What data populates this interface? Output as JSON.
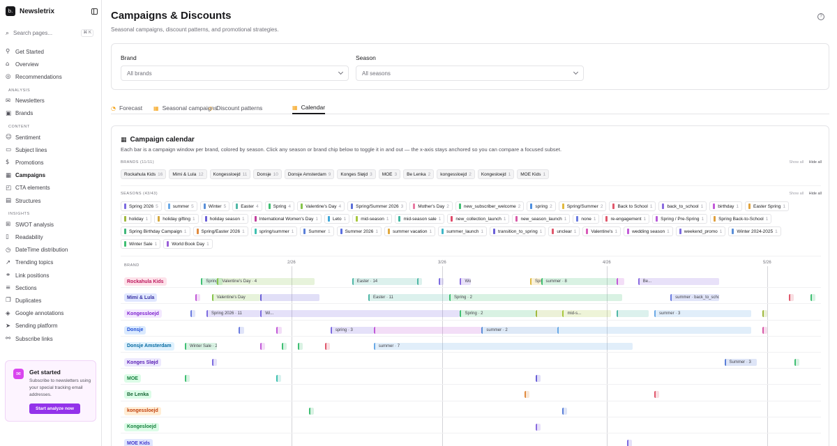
{
  "app": {
    "name": "Newsletrix",
    "logo_text": "b."
  },
  "sidebar": {
    "search_placeholder": "Search pages...",
    "search_shortcut": "⌘ K",
    "top_items": [
      {
        "label": "Get Started",
        "icon": "rocket-icon",
        "glyph": "⚲"
      },
      {
        "label": "Overview",
        "icon": "home-icon",
        "glyph": "⌂"
      },
      {
        "label": "Recommendations",
        "icon": "lightbulb-icon",
        "glyph": "◎"
      }
    ],
    "sections": [
      {
        "heading": "ANALYSIS",
        "items": [
          {
            "label": "Newsletters",
            "icon": "mail-icon",
            "glyph": "✉"
          },
          {
            "label": "Brands",
            "icon": "store-icon",
            "glyph": "▣"
          }
        ]
      },
      {
        "heading": "CONTENT",
        "items": [
          {
            "label": "Sentiment",
            "icon": "smile-icon",
            "glyph": "☺"
          },
          {
            "label": "Subject lines",
            "icon": "message-icon",
            "glyph": "▭"
          },
          {
            "label": "Promotions",
            "icon": "dollar-icon",
            "glyph": "$"
          },
          {
            "label": "Campaigns",
            "icon": "calendar-icon",
            "glyph": "▦",
            "active": true
          },
          {
            "label": "CTA elements",
            "icon": "cursor-icon",
            "glyph": "◰"
          },
          {
            "label": "Structures",
            "icon": "layout-icon",
            "glyph": "▤"
          }
        ]
      },
      {
        "heading": "INSIGHTS",
        "items": [
          {
            "label": "SWOT analysis",
            "icon": "swot-icon",
            "glyph": "⊞"
          },
          {
            "label": "Readability",
            "icon": "book-icon",
            "glyph": "▯"
          },
          {
            "label": "DateTime distribution",
            "icon": "clock-icon",
            "glyph": "◷"
          },
          {
            "label": "Trending topics",
            "icon": "trend-icon",
            "glyph": "↗"
          },
          {
            "label": "Link positions",
            "icon": "link-icon",
            "glyph": "⚭"
          },
          {
            "label": "Sections",
            "icon": "sections-icon",
            "glyph": "≡"
          },
          {
            "label": "Duplicates",
            "icon": "copy-icon",
            "glyph": "❐"
          },
          {
            "label": "Google annotations",
            "icon": "tag-icon",
            "glyph": "◈"
          },
          {
            "label": "Sending platform",
            "icon": "send-icon",
            "glyph": "➤"
          },
          {
            "label": "Subscribe links",
            "icon": "link-plus-icon",
            "glyph": "⚯"
          }
        ]
      }
    ],
    "promo": {
      "title": "Get started",
      "body": "Subscribe to newsletters using your special tracking email addresses.",
      "button": "Start analyze now"
    }
  },
  "header": {
    "title": "Campaigns & Discounts",
    "subtitle": "Seasonal campaigns, discount patterns, and promotional strategies."
  },
  "filters": {
    "brand_label": "Brand",
    "brand_value": "All brands",
    "season_label": "Season",
    "season_value": "All seasons"
  },
  "tabs": [
    {
      "label": "Forecast",
      "icon": "forecast-icon",
      "glyph": "◔"
    },
    {
      "label": "Seasonal campaigns",
      "icon": "calendar-icon",
      "glyph": "▦"
    },
    {
      "label": "Discount patterns",
      "icon": "tag-icon",
      "glyph": "◇"
    },
    {
      "label": "Calendar",
      "icon": "calendar-icon",
      "glyph": "▦",
      "active": true
    }
  ],
  "calendar": {
    "title": "Campaign calendar",
    "subtitle": "Each bar is a campaign window per brand, colored by season. Click any season or brand chip below to toggle it in and out — the x-axis stays anchored so you can compare a focused subset.",
    "brands_label": "BRANDS (11/11)",
    "seasons_label": "SEASONS (43/43)",
    "show_all": "Show all",
    "hide_all": "Hide all",
    "brand_column_label": "BRAND",
    "brand_chips": [
      {
        "name": "Rockahula Kids",
        "count": "16"
      },
      {
        "name": "Mimi & Lula",
        "count": "12"
      },
      {
        "name": "Kongessloejd",
        "count": "11"
      },
      {
        "name": "Donsje",
        "count": "10"
      },
      {
        "name": "Donsje Amsterdam",
        "count": "9"
      },
      {
        "name": "Konges Sløjd",
        "count": "3"
      },
      {
        "name": "MOE",
        "count": "3"
      },
      {
        "name": "Be Lenka",
        "count": "2"
      },
      {
        "name": "kongessloejd",
        "count": "2"
      },
      {
        "name": "Kongesloejd",
        "count": "1"
      },
      {
        "name": "MOE Kids",
        "count": "1"
      }
    ],
    "season_chips": [
      {
        "name": "Spring 2026",
        "count": "5",
        "color": "#7c6be0"
      },
      {
        "name": "summer",
        "count": "5",
        "color": "#6aa9e6"
      },
      {
        "name": "Winter",
        "count": "5",
        "color": "#5a8fd8"
      },
      {
        "name": "Easter",
        "count": "4",
        "color": "#4fb7a6"
      },
      {
        "name": "Spring",
        "count": "4",
        "color": "#3fbf73"
      },
      {
        "name": "Valentine's Day",
        "count": "4",
        "color": "#86c44a"
      },
      {
        "name": "Spring/Summer 2026",
        "count": "3",
        "color": "#5b6fd8"
      },
      {
        "name": "Mother's Day",
        "count": "2",
        "color": "#e87aa3"
      },
      {
        "name": "new_subscriber_welcome",
        "count": "2",
        "color": "#3fbf73"
      },
      {
        "name": "spring",
        "count": "2",
        "color": "#4d8fe0"
      },
      {
        "name": "Spring/Summer",
        "count": "2",
        "color": "#e0b93e"
      },
      {
        "name": "Back to School",
        "count": "1",
        "color": "#e0586c"
      },
      {
        "name": "back_to_school",
        "count": "1",
        "color": "#8a6be0"
      },
      {
        "name": "birthday",
        "count": "1",
        "color": "#c25ad8"
      },
      {
        "name": "Easter Spring",
        "count": "1",
        "color": "#e0a33e"
      },
      {
        "name": "holiday",
        "count": "1",
        "color": "#a0b83e"
      },
      {
        "name": "holiday gifting",
        "count": "1",
        "color": "#d4a83e"
      },
      {
        "name": "holiday season",
        "count": "1",
        "color": "#6b5fd8"
      },
      {
        "name": "International Women's Day",
        "count": "1",
        "color": "#c2409e"
      },
      {
        "name": "Leto",
        "count": "1",
        "color": "#3fa7d8"
      },
      {
        "name": "mid-season",
        "count": "1",
        "color": "#a8c83e"
      },
      {
        "name": "mid-season sale",
        "count": "1",
        "color": "#3fb7a0"
      },
      {
        "name": "new_collection_launch",
        "count": "1",
        "color": "#e04a6a"
      },
      {
        "name": "new_season_launch",
        "count": "1",
        "color": "#d85aa8"
      },
      {
        "name": "none",
        "count": "1",
        "color": "#6a7be0"
      },
      {
        "name": "re-engagement",
        "count": "1",
        "color": "#e0586c"
      },
      {
        "name": "Spring / Pre-Spring",
        "count": "1",
        "color": "#b85ad8"
      },
      {
        "name": "Spring Back-to-School",
        "count": "1",
        "color": "#e0a03e"
      },
      {
        "name": "Spring Birthday Campaign",
        "count": "1",
        "color": "#3fb77a"
      },
      {
        "name": "Spring/Easter 2026",
        "count": "1",
        "color": "#e08a3e"
      },
      {
        "name": "spring/summer",
        "count": "1",
        "color": "#3fc0b0"
      },
      {
        "name": "Summer",
        "count": "1",
        "color": "#5a7fd8"
      },
      {
        "name": "Summer 2026",
        "count": "1",
        "color": "#5b6fe0"
      },
      {
        "name": "summer vacation",
        "count": "1",
        "color": "#e0a83e"
      },
      {
        "name": "summer_launch",
        "count": "1",
        "color": "#3fb7c8"
      },
      {
        "name": "transition_to_spring",
        "count": "1",
        "color": "#6a5fd8"
      },
      {
        "name": "unclear",
        "count": "1",
        "color": "#e0586c"
      },
      {
        "name": "Valentine's",
        "count": "1",
        "color": "#d85ab8"
      },
      {
        "name": "wedding season",
        "count": "1",
        "color": "#c25ad8"
      },
      {
        "name": "weekend_promo",
        "count": "1",
        "color": "#7c6be0"
      },
      {
        "name": "Winter 2024-2025",
        "count": "1",
        "color": "#5a8fd8"
      },
      {
        "name": "Winter Sale",
        "count": "1",
        "color": "#3fbf73"
      },
      {
        "name": "World Book Day",
        "count": "1",
        "color": "#9a5fd8"
      }
    ],
    "x_ticks": [
      "2/26",
      "3/26",
      "4/26",
      "5/26"
    ],
    "rows": [
      {
        "brand": "Rockahula Kids",
        "badge_bg": "#fde2ea",
        "badge_fg": "#be185d",
        "bars": [
          {
            "s": 0.03,
            "e": 0.07,
            "color": "#3fbf73",
            "label": "Spring"
          },
          {
            "s": 0.06,
            "e": 0.24,
            "color": "#86c44a",
            "label": "Valentine's Day · 4"
          },
          {
            "s": 0.31,
            "e": 0.43,
            "color": "#4fb7a6",
            "label": "Easter · 14"
          },
          {
            "s": 0.43,
            "e": 0.44,
            "color": "#4fb7a6",
            "label": ""
          },
          {
            "s": 0.47,
            "e": 0.475,
            "color": "#7c6be0",
            "label": ""
          },
          {
            "s": 0.51,
            "e": 0.53,
            "color": "#8a6be0",
            "label": "Wo..."
          },
          {
            "s": 0.64,
            "e": 0.66,
            "color": "#e0b93e",
            "label": "Spring..."
          },
          {
            "s": 0.66,
            "e": 0.8,
            "color": "#3fbf73",
            "label": "summer · 8"
          },
          {
            "s": 0.8,
            "e": 0.815,
            "color": "#c25ad8",
            "label": ""
          },
          {
            "s": 0.84,
            "e": 0.99,
            "color": "#8a6be0",
            "label": "Be..."
          }
        ]
      },
      {
        "brand": "Mimi & Lula",
        "badge_bg": "#e0e7ff",
        "badge_fg": "#3730a3",
        "bars": [
          {
            "s": 0.02,
            "e": 0.025,
            "color": "#c25ad8",
            "label": ""
          },
          {
            "s": 0.05,
            "e": 0.14,
            "color": "#86c44a",
            "label": "Valentine's Day"
          },
          {
            "s": 0.14,
            "e": 0.25,
            "color": "#6a5fd8",
            "label": ""
          },
          {
            "s": 0.34,
            "e": 0.49,
            "color": "#4fb7a6",
            "label": "Easter · 11"
          },
          {
            "s": 0.49,
            "e": 0.81,
            "color": "#3fbf73",
            "label": "Spring · 2"
          },
          {
            "s": 0.9,
            "e": 0.99,
            "color": "#6a7be0",
            "label": "summer · back_to_scho..."
          },
          {
            "s": 1.12,
            "e": 1.125,
            "color": "#e0586c",
            "label": ""
          },
          {
            "s": 1.16,
            "e": 1.165,
            "color": "#3fbf73",
            "label": ""
          }
        ]
      },
      {
        "brand": "Kongessloejd",
        "badge_bg": "#f3e8ff",
        "badge_fg": "#7e22ce",
        "bars": [
          {
            "s": 0.01,
            "e": 0.02,
            "color": "#6a7be0",
            "label": ""
          },
          {
            "s": 0.04,
            "e": 0.14,
            "color": "#7c6be0",
            "label": "Spring 2026 · 11"
          },
          {
            "s": 0.14,
            "e": 0.51,
            "color": "#7c6be0",
            "label": "Wi..."
          },
          {
            "s": 0.51,
            "e": 0.65,
            "color": "#3fbf73",
            "label": "Spring · 2"
          },
          {
            "s": 0.65,
            "e": 0.7,
            "color": "#a0b83e",
            "label": ""
          },
          {
            "s": 0.7,
            "e": 0.79,
            "color": "#a8c83e",
            "label": "mid-s..."
          },
          {
            "s": 0.8,
            "e": 0.86,
            "color": "#4fb7a6",
            "label": ""
          },
          {
            "s": 0.87,
            "e": 1.05,
            "color": "#6aa9e6",
            "label": "summer · 3"
          },
          {
            "s": 1.07,
            "e": 1.075,
            "color": "#a0b83e",
            "label": ""
          }
        ]
      },
      {
        "brand": "Donsje",
        "badge_bg": "#dbeafe",
        "badge_fg": "#1d4ed8",
        "bars": [
          {
            "s": 0.1,
            "e": 0.11,
            "color": "#6a7be0",
            "label": ""
          },
          {
            "s": 0.17,
            "e": 0.18,
            "color": "#c25ad8",
            "label": ""
          },
          {
            "s": 0.27,
            "e": 0.35,
            "color": "#7c6be0",
            "label": "spring · 3"
          },
          {
            "s": 0.35,
            "e": 0.55,
            "color": "#c25ad8",
            "label": ""
          },
          {
            "s": 0.55,
            "e": 0.69,
            "color": "#5a8fd8",
            "label": "summer · 2"
          },
          {
            "s": 0.69,
            "e": 1.05,
            "color": "#6aa9e6",
            "label": ""
          },
          {
            "s": 1.07,
            "e": 1.075,
            "color": "#d85aa8",
            "label": ""
          }
        ]
      },
      {
        "brand": "Donsje Amsterdam",
        "badge_bg": "#e0f2fe",
        "badge_fg": "#0369a1",
        "bars": [
          {
            "s": 0.0,
            "e": 0.06,
            "color": "#3fbf73",
            "label": "Winter Sale · 2"
          },
          {
            "s": 0.14,
            "e": 0.145,
            "color": "#c25ad8",
            "label": ""
          },
          {
            "s": 0.18,
            "e": 0.185,
            "color": "#3fbf73",
            "label": ""
          },
          {
            "s": 0.21,
            "e": 0.215,
            "color": "#3fbf73",
            "label": ""
          },
          {
            "s": 0.26,
            "e": 0.265,
            "color": "#e0586c",
            "label": ""
          },
          {
            "s": 0.35,
            "e": 0.83,
            "color": "#6aa9e6",
            "label": "summer · 7"
          }
        ]
      },
      {
        "brand": "Konges Sløjd",
        "badge_bg": "#ede9fe",
        "badge_fg": "#5b21b6",
        "bars": [
          {
            "s": 0.05,
            "e": 0.055,
            "color": "#7c6be0",
            "label": ""
          },
          {
            "s": 1.0,
            "e": 1.06,
            "color": "#5a7fd8",
            "label": "Summer · 3"
          },
          {
            "s": 1.13,
            "e": 1.135,
            "color": "#3fbf73",
            "label": ""
          }
        ]
      },
      {
        "brand": "MOE",
        "badge_bg": "#dcfce7",
        "badge_fg": "#15803d",
        "bars": [
          {
            "s": 0.0,
            "e": 0.005,
            "color": "#3fbf73",
            "label": ""
          },
          {
            "s": 0.17,
            "e": 0.175,
            "color": "#3fc0b0",
            "label": ""
          },
          {
            "s": 0.65,
            "e": 0.655,
            "color": "#6a5fd8",
            "label": ""
          }
        ]
      },
      {
        "brand": "Be Lenka",
        "badge_bg": "#dcfce7",
        "badge_fg": "#166534",
        "bars": [
          {
            "s": 0.63,
            "e": 0.635,
            "color": "#e08a3e",
            "label": ""
          },
          {
            "s": 0.87,
            "e": 0.875,
            "color": "#e0586c",
            "label": ""
          }
        ]
      },
      {
        "brand": "kongessloejd",
        "badge_bg": "#ffedd5",
        "badge_fg": "#c2410c",
        "bars": [
          {
            "s": 0.23,
            "e": 0.235,
            "color": "#3fbf73",
            "label": ""
          },
          {
            "s": 0.7,
            "e": 0.705,
            "color": "#5a7fd8",
            "label": ""
          }
        ]
      },
      {
        "brand": "Kongesloejd",
        "badge_bg": "#dcfce7",
        "badge_fg": "#15803d",
        "bars": [
          {
            "s": 0.65,
            "e": 0.655,
            "color": "#8a6be0",
            "label": ""
          }
        ]
      },
      {
        "brand": "MOE Kids",
        "badge_bg": "#e0e7ff",
        "badge_fg": "#4338ca",
        "bars": [
          {
            "s": 0.82,
            "e": 0.825,
            "color": "#7c6be0",
            "label": ""
          }
        ]
      }
    ]
  }
}
